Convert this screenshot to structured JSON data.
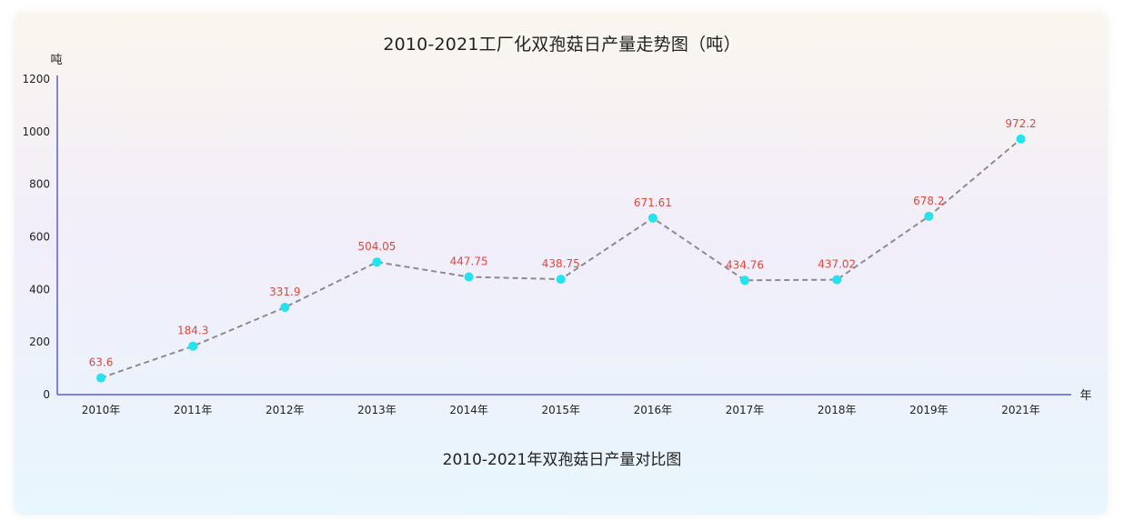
{
  "title": "2010-2021工厂化双孢菇日产量走势图（吨）",
  "subtitle": "2010-2021年双孢菇日产量对比图",
  "chart_data": {
    "type": "line",
    "title": "2010-2021工厂化双孢菇日产量走势图（吨）",
    "xlabel": "年",
    "ylabel": "吨",
    "categories": [
      "2010年",
      "2011年",
      "2012年",
      "2013年",
      "2014年",
      "2015年",
      "2016年",
      "2017年",
      "2018年",
      "2019年",
      "2021年"
    ],
    "series": [
      {
        "values": [
          63.6,
          184.3,
          331.9,
          504.05,
          447.75,
          438.75,
          671.61,
          434.76,
          437.02,
          678.2,
          972.2
        ]
      }
    ],
    "yticks": [
      0,
      200,
      400,
      600,
      800,
      1000,
      1200
    ],
    "ylim": [
      0,
      1200
    ],
    "grid": false,
    "line_color": "#8c8c8c",
    "marker_color": "#22e3ee",
    "label_color": "#e8473b",
    "axis_color": "#5a5fd4"
  }
}
